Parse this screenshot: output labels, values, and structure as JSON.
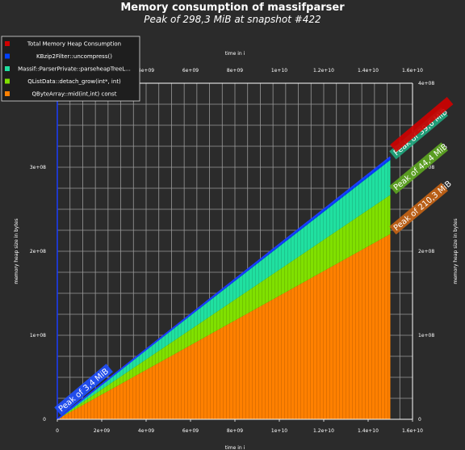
{
  "chart_data": {
    "type": "area",
    "title": "Memory consumption of massifparser",
    "subtitle": "Peak of 298,3 MiB at snapshot #422",
    "xlabel": "time in i",
    "ylabel": "memory heap size in bytes",
    "xlim": [
      0,
      16000000000
    ],
    "ylim": [
      0,
      400000000
    ],
    "x_ticks": [
      "0",
      "2e+09",
      "4e+09",
      "6e+09",
      "8e+09",
      "1e+10",
      "1.2e+10",
      "1.4e+10",
      "1.6e+10"
    ],
    "y_ticks_left": [
      "0",
      "1e+08",
      "2e+08",
      "3e+08"
    ],
    "y_ticks_right": [
      "0",
      "1e+08",
      "2e+08",
      "3e+08",
      "4e+08"
    ],
    "x_end": 15000000000,
    "grid": true,
    "legend_position": "top-left",
    "series": [
      {
        "name": "QByteArray::mid(int,int) const",
        "color": "#ff8000",
        "x": [
          0,
          15000000000
        ],
        "values": [
          0,
          220500000
        ]
      },
      {
        "name": "QListData::detach_grow(int*, int)",
        "color": "#80e000",
        "x": [
          0,
          15000000000
        ],
        "values": [
          0,
          46600000
        ]
      },
      {
        "name": "Massif::ParserPrivate::parseheapTreeL...",
        "color": "#20e0a0",
        "x": [
          0,
          15000000000
        ],
        "values": [
          0,
          41500000
        ]
      },
      {
        "name": "KBzip2Filter::uncompress()",
        "color": "#0040ff",
        "x": [
          0,
          15000000000
        ],
        "values": [
          0,
          3600000
        ]
      },
      {
        "name": "Total Memory Heap Consumption",
        "color": "#d00000",
        "x": [
          0,
          15000000000
        ],
        "values": [
          0,
          312800000
        ]
      }
    ],
    "annotations": [
      "Peak of 3,4 MiB",
      "Peak of 39,6 MiB",
      "Peak of 44,4 MiB",
      "Peak of 210,3 MiB"
    ]
  }
}
